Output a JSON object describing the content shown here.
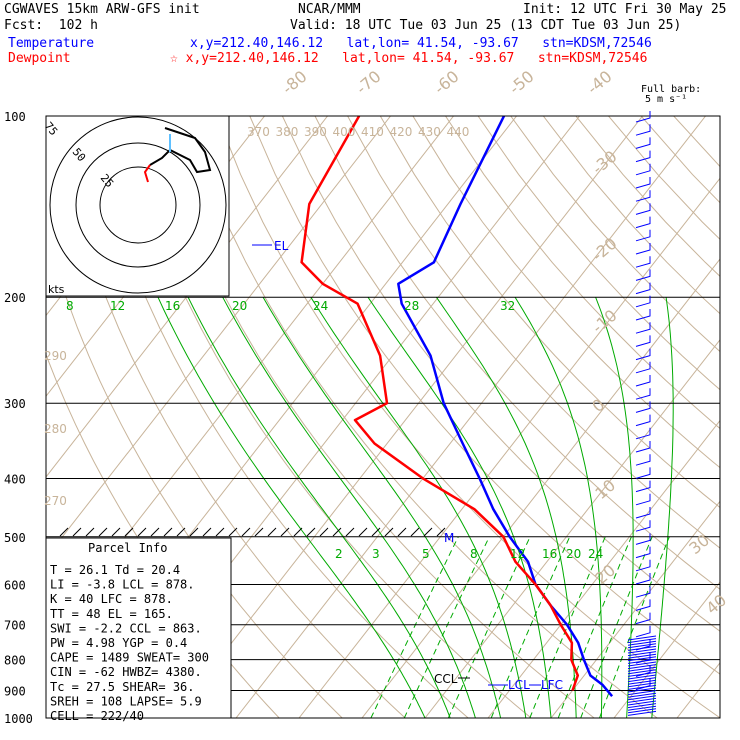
{
  "header": {
    "model": "CGWAVES 15km ARW-GFS init",
    "org": "NCAR/MMM",
    "init": "Init: 12 UTC Fri 30 May 25",
    "fcst": "Fcst:  102 h",
    "valid": "Valid: 18 UTC Tue 03 Jun 25 (13 CDT Tue 03 Jun 25)",
    "temp_label": "Temperature",
    "temp_loc": "x,y=212.40,146.12   lat,lon= 41.54, -93.67   stn=KDSM,72546",
    "dew_label": "Dewpoint",
    "dew_loc": "☆ x,y=212.40,146.12   lat,lon= 41.54, -93.67   stn=KDSM,72546",
    "barb_note1": "Full barb:",
    "barb_note2": "5 m s⁻¹"
  },
  "colors": {
    "temperature": "#0000ff",
    "dewpoint": "#ff0000",
    "isotherm": "#c8b49a",
    "mixing": "#00aa00"
  },
  "chart_data": {
    "type": "line",
    "title": "CGWAVES 15km ARW-GFS init",
    "yaxis_scale": "log-pressure",
    "pressure_ticks": [
      "100",
      "200",
      "300",
      "400",
      "500",
      "600",
      "700",
      "800",
      "900",
      "1000"
    ],
    "isotherm_labels": [
      "-80",
      "-70",
      "-60",
      "-50",
      "-40",
      "-30",
      "-20",
      "-10",
      "0",
      "10",
      "20",
      "30",
      "40"
    ],
    "theta_labels": [
      "370",
      "380",
      "390",
      "400",
      "410",
      "420",
      "430",
      "440"
    ],
    "theta_left_labels": [
      "290",
      "280",
      "270"
    ],
    "mixing_upper_labels": [
      "8",
      "12",
      "16",
      "20",
      "24",
      "28",
      "32"
    ],
    "mixing_lower_labels": [
      "2",
      "3",
      "5",
      "8",
      "12",
      "16",
      "20",
      "24"
    ],
    "series": [
      {
        "name": "Temperature",
        "color": "#0000ff",
        "p": [
          100,
          140,
          175,
          190,
          205,
          250,
          300,
          350,
          400,
          450,
          500,
          550,
          600,
          650,
          700,
          750,
          800,
          850,
          880,
          920
        ],
        "t": [
          -62,
          -58,
          -55,
          -58,
          -55,
          -44,
          -36,
          -28,
          -21,
          -15,
          -9,
          -3,
          1,
          6,
          11,
          15,
          18,
          21,
          24,
          27
        ]
      },
      {
        "name": "Dewpoint",
        "color": "#ff0000",
        "p": [
          100,
          140,
          175,
          190,
          205,
          250,
          300,
          320,
          350,
          400,
          450,
          500,
          550,
          600,
          650,
          700,
          750,
          800,
          850,
          900
        ],
        "t": [
          -85,
          -82,
          -76,
          -70,
          -62,
          -52,
          -45,
          -48,
          -42,
          -30,
          -18,
          -10,
          -5,
          1,
          6,
          10,
          14,
          16,
          19,
          20
        ]
      }
    ],
    "annotations": [
      "EL",
      "CCL",
      "LCL",
      "LFC",
      "M",
      "kts"
    ],
    "hodograph_rings": [
      "75",
      "50",
      "25"
    ]
  },
  "parcel": {
    "title": "Parcel Info",
    "rows": [
      "T  =   26.1  Td =  20.4",
      "LI =   -3.8  LCL =  878.",
      "K  =     40  LFC =  878.",
      "TT =     48  EL  =  165.",
      "SWI =  -2.2  CCL =  863.",
      "PW =   4.98  YGP =   0.4",
      "CAPE =  1489  SWEAT=  300",
      "CIN =   -62  HWBZ= 4380.",
      "Tc =   27.5  SHEAR=  36.",
      "SREH =  108  LAPSE=  5.9",
      "CELL = 222/40"
    ]
  }
}
